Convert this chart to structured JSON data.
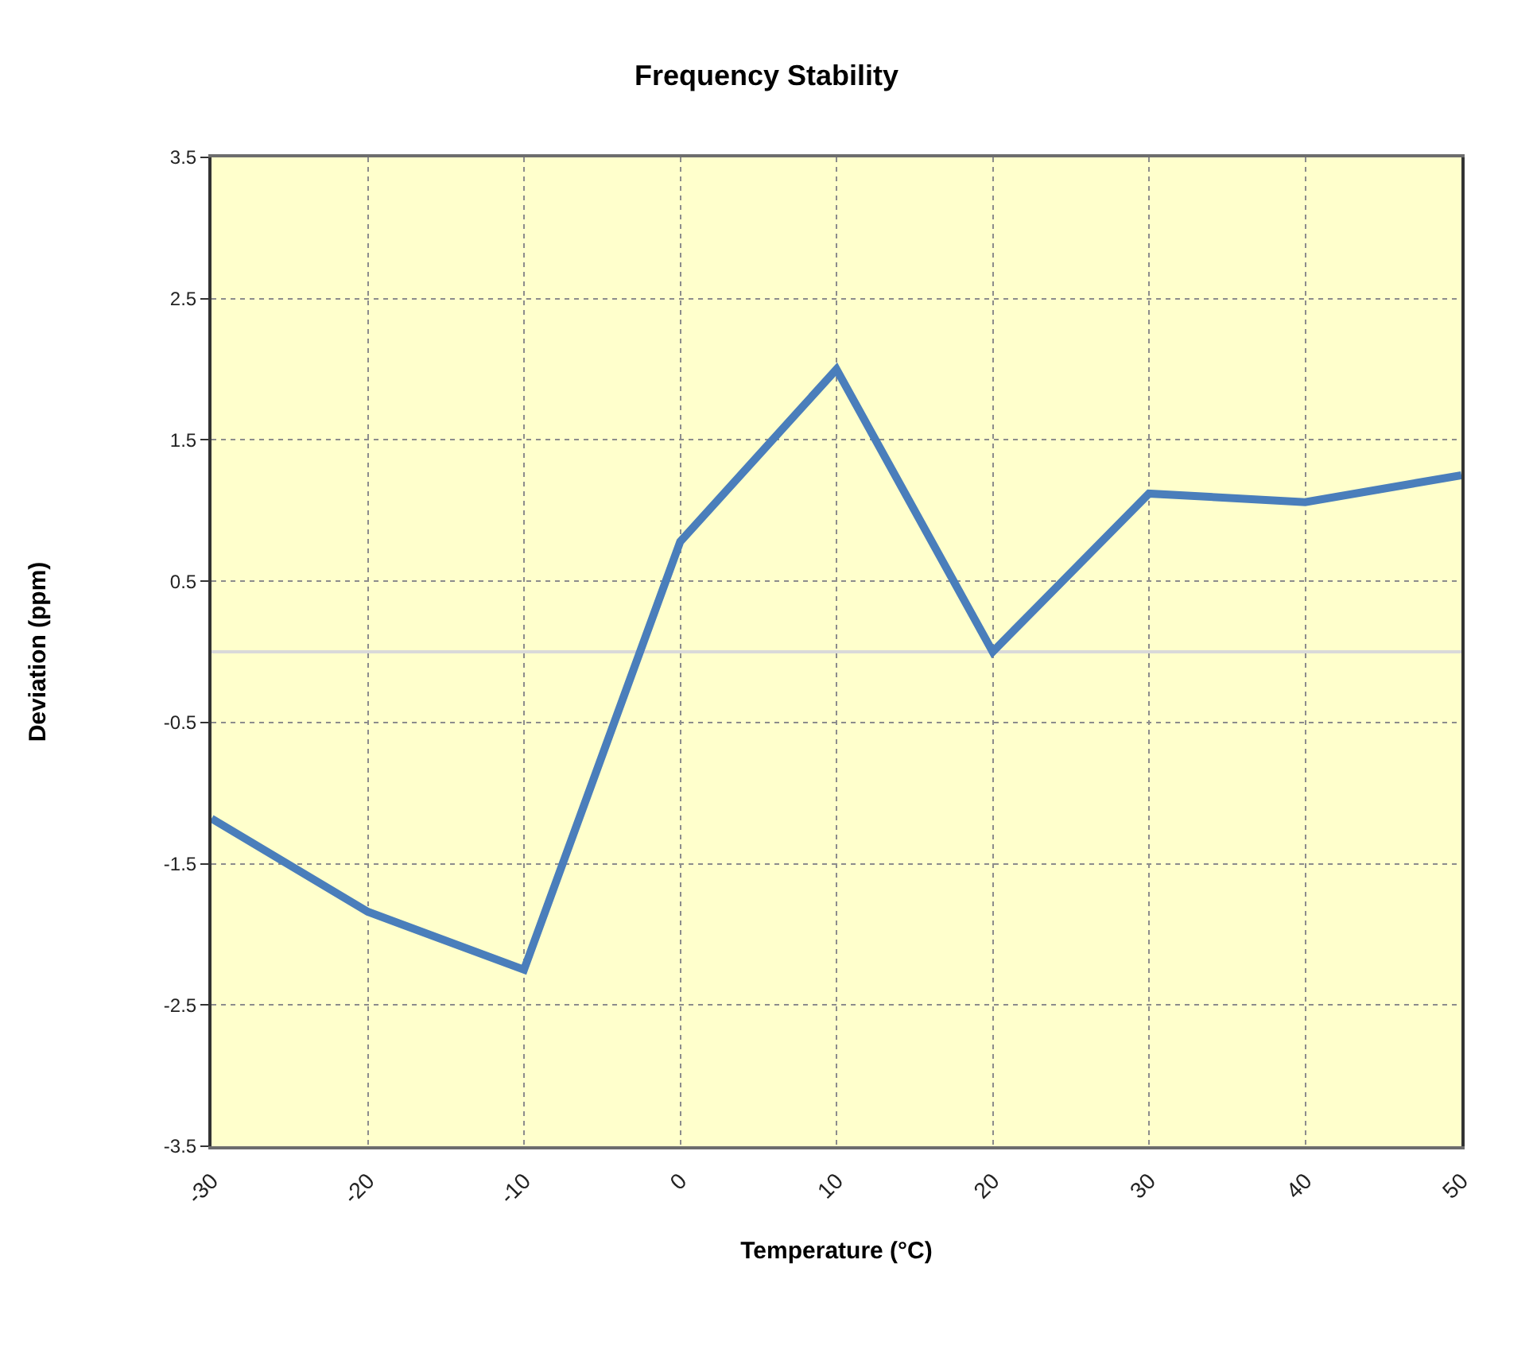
{
  "chart_data": {
    "type": "line",
    "title": "Frequency Stability",
    "xlabel": "Temperature (°C)",
    "ylabel": "Deviation (ppm)",
    "x": [
      -30,
      -20,
      -10,
      0,
      10,
      20,
      30,
      40,
      50
    ],
    "series": [
      {
        "color": "#4a7ebb",
        "values": [
          -1.18,
          -1.84,
          -2.25,
          0.78,
          2.0,
          0,
          1.12,
          1.06,
          1.25
        ]
      }
    ],
    "xlim": [
      -30,
      50
    ],
    "xticks": [
      -30,
      -20,
      -10,
      0,
      10,
      20,
      30,
      40,
      50
    ],
    "ylim": [
      -3.5,
      3.5
    ],
    "yticks": [
      -3.5,
      -2.5,
      -1.5,
      -0.5,
      0.5,
      1.5,
      2.5,
      3.5
    ],
    "grid": true,
    "marker": "none",
    "line_style": "solid",
    "ref_lines": [
      {
        "axis": "y",
        "value": 0,
        "color": "#d9d9d9"
      }
    ]
  }
}
